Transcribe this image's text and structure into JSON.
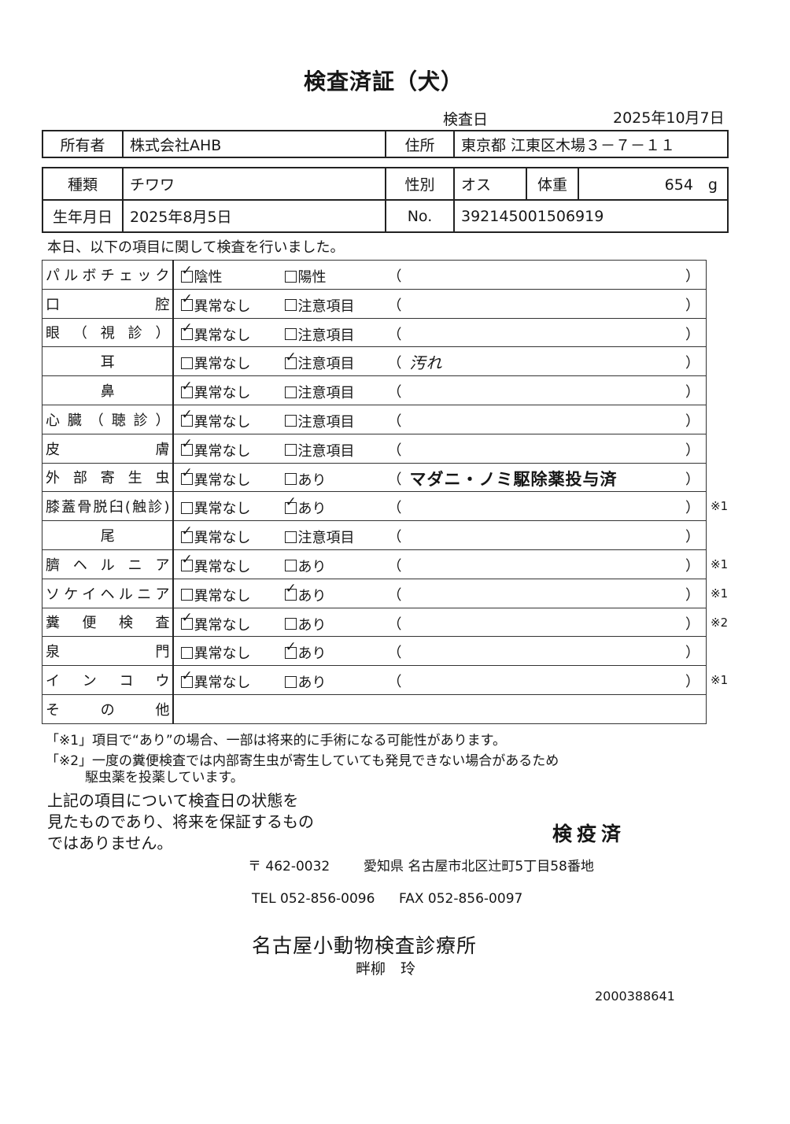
{
  "title": "検査済証（犬）",
  "exam_date_label": "検査日",
  "exam_date": "2025年10月7日",
  "owner": {
    "label": "所有者",
    "value": "株式会社AHB",
    "address_label": "住所",
    "address": "東京都 江東区木場３－７－１１"
  },
  "pet": {
    "breed_label": "種類",
    "breed": "チワワ",
    "sex_label": "性別",
    "sex": "オス",
    "weight_label": "体重",
    "weight": "654　g",
    "birth_label": "生年月日",
    "birth": "2025年8月5日",
    "no_label": "No.",
    "no": "392145001506919"
  },
  "intro": "本日、以下の項目に関して検査を行いました。",
  "paren_open": "（",
  "paren_close": "）",
  "rows": [
    {
      "label": "パルボチェック",
      "opt1": "陰性",
      "opt1_checked": true,
      "opt2": "陽性",
      "opt2_checked": false,
      "remark": "",
      "note": ""
    },
    {
      "label": "口腔",
      "opt1": "異常なし",
      "opt1_checked": true,
      "opt2": "注意項目",
      "opt2_checked": false,
      "remark": "",
      "note": ""
    },
    {
      "label": "眼（視診）",
      "opt1": "異常なし",
      "opt1_checked": true,
      "opt2": "注意項目",
      "opt2_checked": false,
      "remark": "",
      "note": ""
    },
    {
      "label": "耳",
      "opt1": "異常なし",
      "opt1_checked": false,
      "opt2": "注意項目",
      "opt2_checked": true,
      "remark": "汚れ",
      "remark_handwritten": true,
      "note": ""
    },
    {
      "label": "鼻",
      "opt1": "異常なし",
      "opt1_checked": true,
      "opt2": "注意項目",
      "opt2_checked": false,
      "remark": "",
      "note": ""
    },
    {
      "label": "心臓（聴診）",
      "opt1": "異常なし",
      "opt1_checked": true,
      "opt2": "注意項目",
      "opt2_checked": false,
      "remark": "",
      "note": ""
    },
    {
      "label": "皮膚",
      "opt1": "異常なし",
      "opt1_checked": true,
      "opt2": "注意項目",
      "opt2_checked": false,
      "remark": "",
      "note": ""
    },
    {
      "label": "外部寄生虫",
      "opt1": "異常なし",
      "opt1_checked": true,
      "opt2": "あり",
      "opt2_checked": false,
      "remark": "マダニ・ノミ駆除薬投与済",
      "note": ""
    },
    {
      "label": "膝蓋骨脱臼(触診)",
      "opt1": "異常なし",
      "opt1_checked": false,
      "opt2": "あり",
      "opt2_checked": true,
      "remark": "",
      "note": "※1"
    },
    {
      "label": "尾",
      "opt1": "異常なし",
      "opt1_checked": true,
      "opt2": "注意項目",
      "opt2_checked": false,
      "remark": "",
      "note": ""
    },
    {
      "label": "臍ヘルニア",
      "opt1": "異常なし",
      "opt1_checked": true,
      "opt2": "あり",
      "opt2_checked": false,
      "remark": "",
      "note": "※1"
    },
    {
      "label": "ソケイヘルニア",
      "opt1": "異常なし",
      "opt1_checked": false,
      "opt2": "あり",
      "opt2_checked": true,
      "remark": "",
      "note": "※1"
    },
    {
      "label": "糞便検査",
      "opt1": "異常なし",
      "opt1_checked": true,
      "opt2": "あり",
      "opt2_checked": false,
      "remark": "",
      "note": "※2"
    },
    {
      "label": "泉門",
      "opt1": "異常なし",
      "opt1_checked": false,
      "opt2": "あり",
      "opt2_checked": true,
      "remark": "",
      "note": ""
    },
    {
      "label": "インコウ",
      "opt1": "異常なし",
      "opt1_checked": true,
      "opt2": "あり",
      "opt2_checked": false,
      "remark": "",
      "note": "※1"
    }
  ],
  "other_label": "その他",
  "footnote1": "「※1」項目で“あり”の場合、一部は将来的に手術になる可能性があります。",
  "footnote2a": "「※2」一度の糞便検査では内部寄生虫が寄生していても発見できない場合があるため",
  "footnote2b": "駆虫薬を投薬しています。",
  "disclaimer": [
    "上記の項目について検査日の状態を",
    "見たものであり、将来を保証するもの",
    "ではありません。"
  ],
  "stamp": "検疫済",
  "clinic": {
    "postal": "〒 462-0032",
    "address": "愛知県 名古屋市北区辻町5丁目58番地",
    "tel": "TEL 052-856-0096",
    "fax": "FAX 052-856-0097",
    "name": "名古屋小動物検査診療所",
    "vet": "畔柳　玲"
  },
  "doc_number": "2000388641"
}
